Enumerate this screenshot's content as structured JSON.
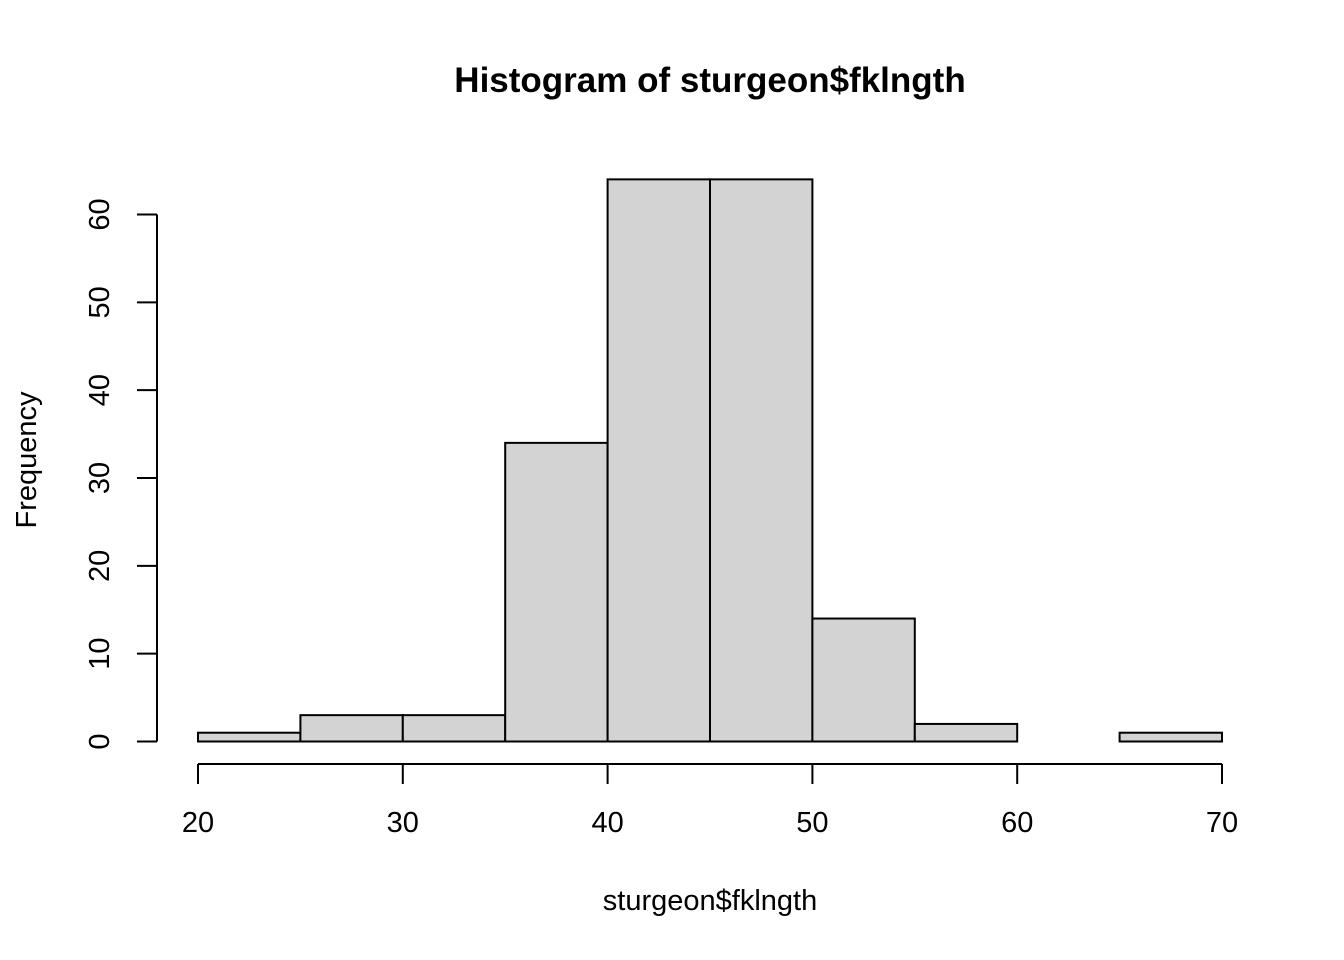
{
  "chart_data": {
    "type": "bar",
    "title": "Histogram of sturgeon$fklngth",
    "xlabel": "sturgeon$fklngth",
    "ylabel": "Frequency",
    "bins": [
      {
        "from": 20,
        "to": 25,
        "count": 1
      },
      {
        "from": 25,
        "to": 30,
        "count": 3
      },
      {
        "from": 30,
        "to": 35,
        "count": 3
      },
      {
        "from": 35,
        "to": 40,
        "count": 34
      },
      {
        "from": 40,
        "to": 45,
        "count": 64
      },
      {
        "from": 45,
        "to": 50,
        "count": 64
      },
      {
        "from": 50,
        "to": 55,
        "count": 14
      },
      {
        "from": 55,
        "to": 60,
        "count": 2
      },
      {
        "from": 60,
        "to": 65,
        "count": 0
      },
      {
        "from": 65,
        "to": 70,
        "count": 1
      }
    ],
    "xlim": [
      20,
      70
    ],
    "ylim": [
      0,
      64
    ],
    "xticks": [
      20,
      30,
      40,
      50,
      60,
      70
    ],
    "yticks": [
      0,
      10,
      20,
      30,
      40,
      50,
      60
    ],
    "bar_color": "#d3d3d3",
    "edge_color": "#000000",
    "grid": false,
    "legend": "none"
  }
}
